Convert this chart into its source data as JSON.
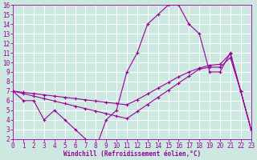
{
  "bg_color": "#cce8e0",
  "grid_color": "#ffffff",
  "line_color": "#990099",
  "xlabel": "Windchill (Refroidissement éolien,°C)",
  "xmin": 0,
  "xmax": 23,
  "ymin": 2,
  "ymax": 16,
  "hours": [
    0,
    1,
    2,
    3,
    4,
    5,
    6,
    7,
    8,
    9,
    10,
    11,
    12,
    13,
    14,
    15,
    16,
    17,
    18,
    19,
    20,
    21,
    22,
    23
  ],
  "temp": [
    7,
    6,
    6,
    4,
    5,
    4,
    3,
    2,
    1,
    4,
    5,
    9,
    11,
    14,
    15,
    16,
    16,
    14,
    13,
    9,
    9,
    11,
    7,
    3
  ],
  "line1_y": [
    7,
    6.74,
    6.48,
    6.22,
    5.96,
    5.7,
    5.43,
    5.17,
    4.91,
    4.65,
    4.39,
    4.13,
    4.87,
    5.61,
    6.35,
    7.09,
    7.83,
    8.57,
    9.3,
    9.5,
    9.5,
    10.5,
    7,
    3
  ],
  "line2_y": [
    7,
    6.87,
    6.74,
    6.61,
    6.48,
    6.35,
    6.22,
    6.09,
    5.96,
    5.83,
    5.7,
    5.57,
    6.1,
    6.7,
    7.3,
    7.9,
    8.5,
    9.0,
    9.4,
    9.7,
    9.8,
    10.9,
    7,
    3
  ],
  "yticks": [
    2,
    3,
    4,
    5,
    6,
    7,
    8,
    9,
    10,
    11,
    12,
    13,
    14,
    15,
    16
  ],
  "xticks": [
    0,
    1,
    2,
    3,
    4,
    5,
    6,
    7,
    8,
    9,
    10,
    11,
    12,
    13,
    14,
    15,
    16,
    17,
    18,
    19,
    20,
    21,
    22,
    23
  ],
  "tick_fontsize": 5.5,
  "xlabel_fontsize": 5.5
}
